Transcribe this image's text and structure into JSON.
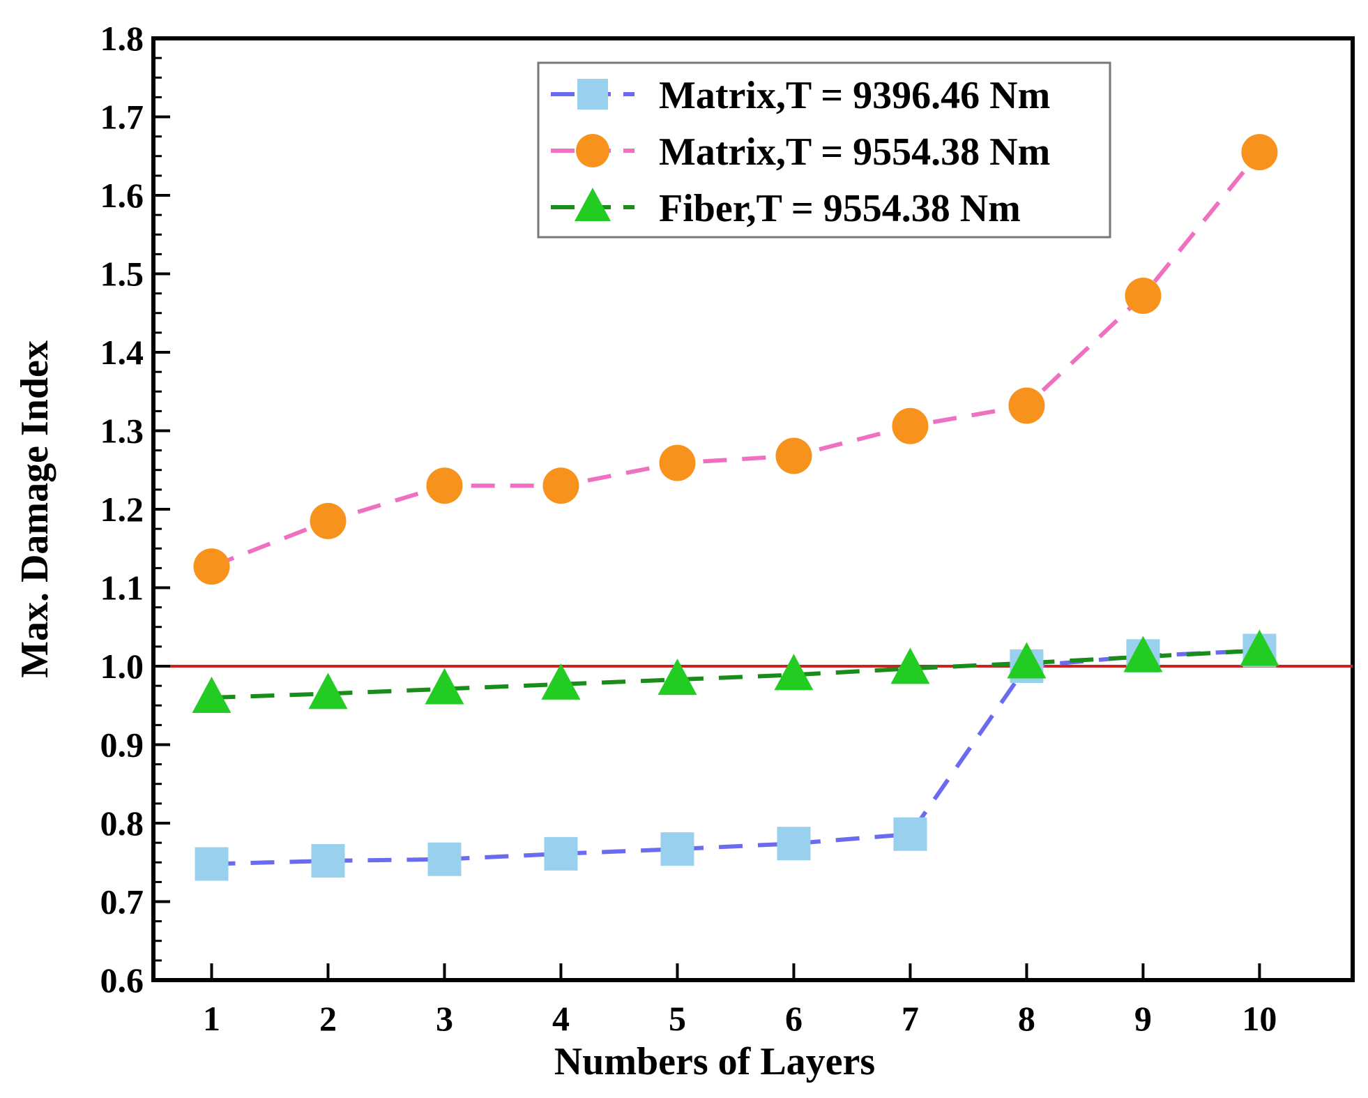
{
  "chart_data": {
    "type": "line",
    "title": "",
    "xlabel": "Numbers of Layers",
    "ylabel": "Max. Damage Index",
    "x": [
      1,
      2,
      3,
      4,
      5,
      6,
      7,
      8,
      9,
      10
    ],
    "xlim": [
      0.5,
      10.8
    ],
    "ylim": [
      0.6,
      1.8
    ],
    "yticks": [
      0.6,
      0.7,
      0.8,
      0.9,
      1.0,
      1.1,
      1.2,
      1.3,
      1.4,
      1.5,
      1.6,
      1.7,
      1.8
    ],
    "ytick_labels": [
      "0.6",
      "0.7",
      "0.8",
      "0.9",
      "1.0",
      "1.1",
      "1.2",
      "1.3",
      "1.4",
      "1.5",
      "1.6",
      "1.7",
      "1.8"
    ],
    "xtick_labels": [
      "1",
      "2",
      "3",
      "4",
      "5",
      "6",
      "7",
      "8",
      "9",
      "10"
    ],
    "reference_line": {
      "y": 1.0,
      "color": "#cc2222"
    },
    "legend_position": "top-right",
    "series": [
      {
        "name": "Matrix,T = 9396.46 Nm",
        "marker": "square",
        "line_color": "#6b6bef",
        "marker_color": "#98d0ee",
        "values": [
          0.748,
          0.752,
          0.754,
          0.761,
          0.767,
          0.774,
          0.786,
          1.0,
          1.013,
          1.02
        ]
      },
      {
        "name": "Matrix,T = 9554.38 Nm",
        "marker": "circle",
        "line_color": "#ef6fc0",
        "marker_color": "#f7931d",
        "values": [
          1.127,
          1.185,
          1.23,
          1.23,
          1.259,
          1.268,
          1.306,
          1.332,
          1.472,
          1.655
        ]
      },
      {
        "name": "Fiber,T = 9554.38 Nm",
        "marker": "triangle",
        "line_color": "#1a8c1a",
        "marker_color": "#22cc22",
        "values": [
          0.96,
          0.965,
          0.971,
          0.977,
          0.983,
          0.989,
          0.997,
          1.004,
          1.012,
          1.02
        ]
      }
    ]
  }
}
